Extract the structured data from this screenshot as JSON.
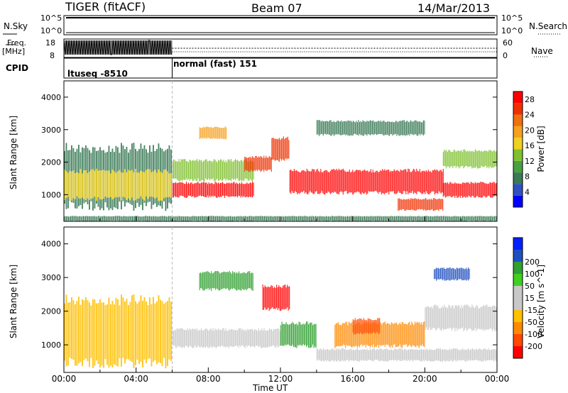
{
  "header": {
    "radar": "TIGER (fitACF)",
    "beam": "Beam 07",
    "date": "14/Mar/2013"
  },
  "noise_panel": {
    "left_label": "N.Sky",
    "right_label": "N.Search",
    "left_ticks": [
      "10^5",
      "10^0"
    ],
    "right_ticks": [
      "10^5",
      "10^0"
    ]
  },
  "freq_panel": {
    "left_label_line1": "Freq.",
    "left_label_line2": "[MHz]",
    "right_label": "Nave",
    "left_ticks": [
      "18",
      "8"
    ],
    "right_ticks": [
      "60",
      "0"
    ]
  },
  "cpid_panel": {
    "label": "CPID",
    "segments": [
      "ltuseq -8510",
      "normal (fast) 151"
    ]
  },
  "colors": {
    "power_scale": [
      "#0000ff",
      "#3050c0",
      "#3a7a55",
      "#4aa040",
      "#80c030",
      "#f0d020",
      "#f4a020",
      "#f07010",
      "#f03000",
      "#ff0000"
    ],
    "velocity_scale": [
      "#ff0000",
      "#ff4a00",
      "#ff8a00",
      "#ffc000",
      "#c8c8c8",
      "#c8c8c8",
      "#40d020",
      "#30a030",
      "#2050c0",
      "#0020ff"
    ],
    "ground_scatter": "#bdbdbd"
  },
  "chart_data": [
    {
      "type": "heatmap",
      "name": "power",
      "ylabel": "Slant Range [km]",
      "ylim": [
        180,
        4500
      ],
      "yticks": [
        "1000",
        "2000",
        "3000",
        "4000"
      ],
      "colorbar_label": "Power [dB]",
      "colorbar_ticks": [
        "4",
        "8",
        "12",
        "16",
        "20",
        "24",
        "28"
      ],
      "colorbar_range": [
        0,
        30
      ],
      "regions": [
        {
          "t0": 0.0,
          "t1": 6.0,
          "r0": 500,
          "r1": 2600,
          "value": 6
        },
        {
          "t0": 0.0,
          "t1": 6.0,
          "r0": 800,
          "r1": 1800,
          "value": 16
        },
        {
          "t0": 6.0,
          "t1": 10.5,
          "r0": 900,
          "r1": 1400,
          "value": 27
        },
        {
          "t0": 6.0,
          "t1": 10.5,
          "r0": 1400,
          "r1": 2100,
          "value": 14
        },
        {
          "t0": 7.5,
          "t1": 9.0,
          "r0": 2700,
          "r1": 3100,
          "value": 20
        },
        {
          "t0": 10.0,
          "t1": 11.5,
          "r0": 1700,
          "r1": 2200,
          "value": 26
        },
        {
          "t0": 11.5,
          "t1": 12.5,
          "r0": 2000,
          "r1": 2800,
          "value": 24
        },
        {
          "t0": 12.5,
          "t1": 21.0,
          "r0": 1000,
          "r1": 1800,
          "value": 27
        },
        {
          "t0": 18.5,
          "t1": 21.0,
          "r0": 500,
          "r1": 900,
          "value": 26
        },
        {
          "t0": 21.0,
          "t1": 24.0,
          "r0": 900,
          "r1": 1400,
          "value": 28
        },
        {
          "t0": 21.0,
          "t1": 24.0,
          "r0": 1800,
          "r1": 2400,
          "value": 12
        },
        {
          "t0": 14.0,
          "t1": 20.0,
          "r0": 2800,
          "r1": 3300,
          "value": 8
        },
        {
          "t0": 0.0,
          "t1": 24.0,
          "r0": 180,
          "r1": 350,
          "value": 8
        }
      ]
    },
    {
      "type": "heatmap",
      "name": "velocity",
      "ylabel": "Slant Range [km]",
      "ylim": [
        180,
        4500
      ],
      "yticks": [
        "1000",
        "2000",
        "3000",
        "4000"
      ],
      "xlabel": "Time UT",
      "xticks": [
        "00:00",
        "04:00",
        "08:00",
        "12:00",
        "16:00",
        "20:00",
        "00:00"
      ],
      "xlim_hours": [
        0,
        24
      ],
      "colorbar_label": "Velocity [m s^-1]",
      "colorbar_ticks": [
        "-200",
        "-100",
        "-50",
        "-15",
        "15",
        "50",
        "100",
        "200"
      ],
      "regions": [
        {
          "t0": 0.0,
          "t1": 6.0,
          "r0": 300,
          "r1": 2500,
          "value": -30
        },
        {
          "t0": 6.0,
          "t1": 12.0,
          "r0": 900,
          "r1": 1500,
          "value": 0
        },
        {
          "t0": 11.0,
          "t1": 12.5,
          "r0": 2000,
          "r1": 2800,
          "value": -200
        },
        {
          "t0": 12.0,
          "t1": 14.0,
          "r0": 900,
          "r1": 1700,
          "value": 60
        },
        {
          "t0": 15.0,
          "t1": 20.0,
          "r0": 900,
          "r1": 1700,
          "value": -80
        },
        {
          "t0": 16.0,
          "t1": 17.5,
          "r0": 1300,
          "r1": 1800,
          "value": -150
        },
        {
          "t0": 14.0,
          "t1": 24.0,
          "r0": 500,
          "r1": 900,
          "value": 0
        },
        {
          "t0": 20.0,
          "t1": 24.0,
          "r0": 1400,
          "r1": 2200,
          "value": 0
        },
        {
          "t0": 7.5,
          "t1": 10.5,
          "r0": 2600,
          "r1": 3200,
          "value": 100
        },
        {
          "t0": 20.5,
          "t1": 22.5,
          "r0": 2900,
          "r1": 3300,
          "value": 200
        }
      ]
    }
  ]
}
